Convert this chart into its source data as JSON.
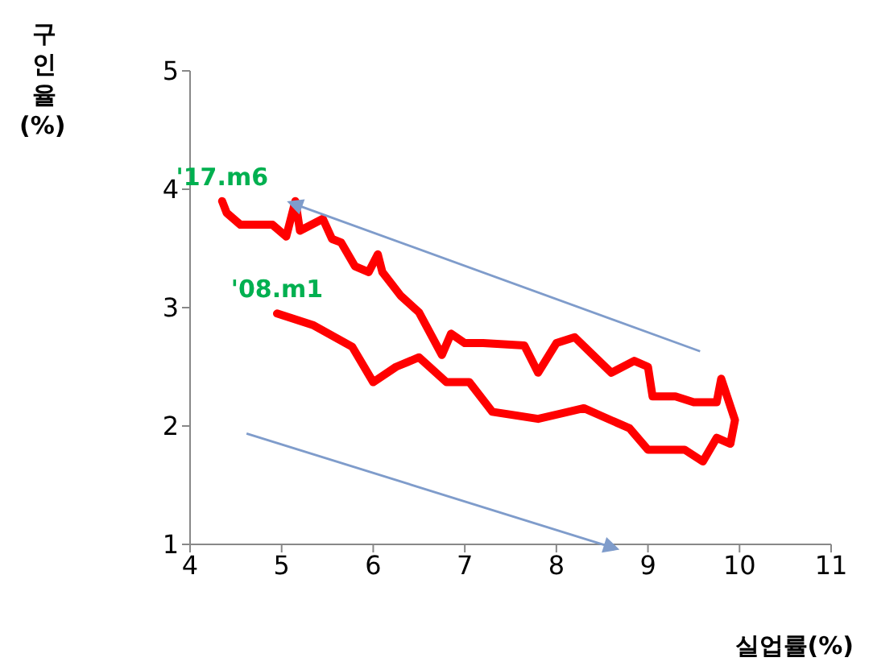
{
  "chart_data": {
    "type": "line",
    "xlabel": "실업률(%)",
    "ylabel": "구인율(%)",
    "xlim": [
      4,
      11
    ],
    "xticks": [
      4,
      5,
      6,
      7,
      8,
      9,
      10,
      11
    ],
    "ylim": [
      1,
      5
    ],
    "yticks": [
      1,
      2,
      3,
      4,
      5
    ],
    "grid": false,
    "legend": false,
    "marker": "none",
    "line_style": "solid",
    "x": [
      4.95,
      5.35,
      5.77,
      6.0,
      6.25,
      6.5,
      6.8,
      7.05,
      7.3,
      7.8,
      8.3,
      8.8,
      9.0,
      9.4,
      9.6,
      9.75,
      9.9,
      9.95,
      9.8,
      9.75,
      9.5,
      9.3,
      9.05,
      9.0,
      8.85,
      8.6,
      8.4,
      8.2,
      8.0,
      7.8,
      7.65,
      7.2,
      7.0,
      6.85,
      6.75,
      6.5,
      6.3,
      6.1,
      6.05,
      5.95,
      5.8,
      5.65,
      5.55,
      5.45,
      5.2,
      5.15,
      5.05,
      4.9,
      4.7,
      4.55,
      4.4,
      4.35
    ],
    "series": [
      {
        "color": "#ff0000",
        "values": [
          2.95,
          2.85,
          2.67,
          2.37,
          2.5,
          2.58,
          2.37,
          2.37,
          2.12,
          2.06,
          2.15,
          1.98,
          1.8,
          1.8,
          1.7,
          1.9,
          1.85,
          2.05,
          2.4,
          2.2,
          2.2,
          2.25,
          2.25,
          2.5,
          2.55,
          2.45,
          2.6,
          2.75,
          2.7,
          2.45,
          2.68,
          2.7,
          2.7,
          2.78,
          2.6,
          2.96,
          3.1,
          3.3,
          3.45,
          3.3,
          3.35,
          3.55,
          3.58,
          3.75,
          3.65,
          3.9,
          3.6,
          3.7,
          3.7,
          3.7,
          3.8,
          3.9
        ]
      }
    ],
    "annotations": [
      {
        "text": "'17.m6",
        "x": 4.35,
        "y": 3.9
      },
      {
        "text": "'08.m1",
        "x": 4.95,
        "y": 2.95
      }
    ]
  }
}
